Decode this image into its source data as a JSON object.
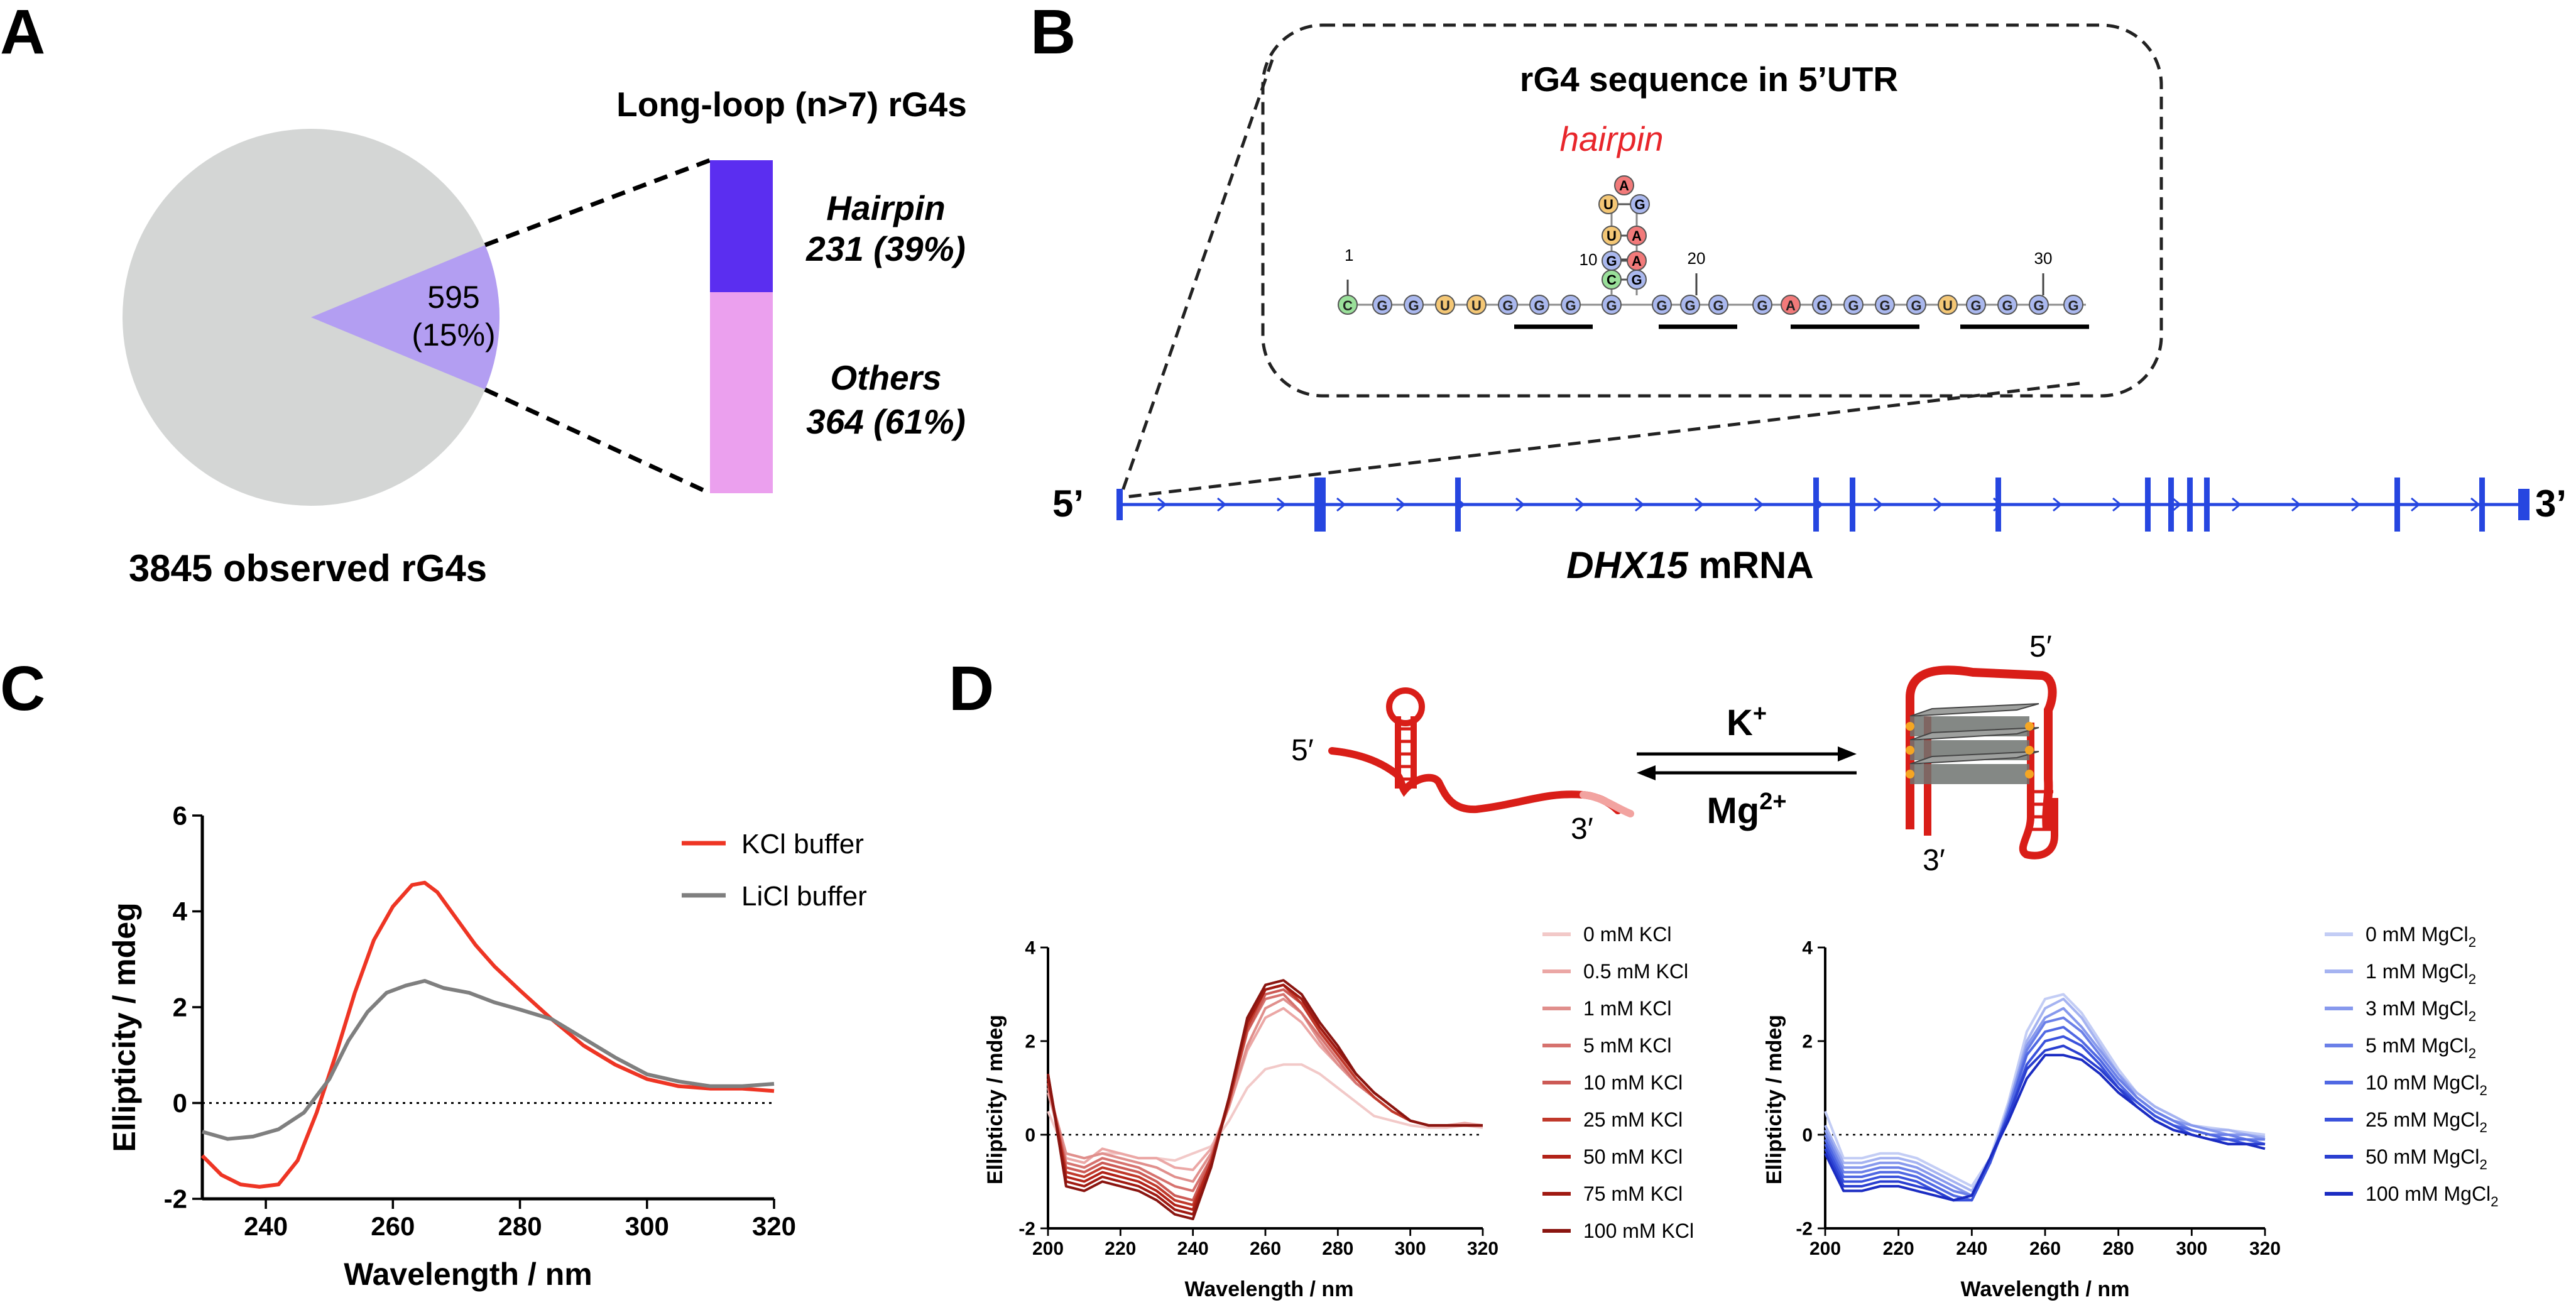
{
  "panel_labels": {
    "a": "A",
    "b": "B",
    "c": "C",
    "d": "D"
  },
  "panelA": {
    "title": "Long-loop (n>7) rG4s",
    "pie_label_count": "595",
    "pie_label_pct": "(15%)",
    "pie_caption": "3845 observed rG4s",
    "hairpin_name": "Hairpin",
    "hairpin_value": "231 (39%)",
    "others_name": "Others",
    "others_value": "364 (61%)",
    "colors": {
      "pie_rest": "#d4d6d5",
      "pie_slice": "#b39ef2",
      "hairpin": "#5b2ef0",
      "others": "#eba0ee"
    }
  },
  "panelB": {
    "inset_title": "rG4 sequence in 5’UTR",
    "hairpin_label": "hairpin",
    "five_prime": "5’",
    "three_prime": "3’",
    "gene": "DHX15",
    "mrna": " mRNA",
    "pos_1": "1",
    "pos_10": "10",
    "pos_20": "20",
    "pos_30": "30",
    "stem_left": [
      "U",
      "U",
      "G",
      "C"
    ],
    "stem_right": [
      "G",
      "A",
      "A",
      "G"
    ],
    "nuc_colors": {
      "G": "#aab8ee",
      "C": "#9ae09a",
      "U": "#f4c775",
      "A": "#f27a7a"
    },
    "line_color": "#2646e0"
  },
  "panelD": {
    "k_ion": "K",
    "k_sup": "+",
    "mg_ion": "Mg",
    "mg_sup": "2+",
    "left_5": "5′",
    "left_3": "3′",
    "right_5": "5′",
    "right_3": "3′"
  },
  "chart_data": [
    {
      "id": "C",
      "type": "line",
      "xlabel": "Wavelength / nm",
      "ylabel": "Ellipticity / mdeg",
      "xlim": [
        230,
        320
      ],
      "ylim": [
        -2,
        6
      ],
      "xticks": [
        240,
        260,
        280,
        300,
        320
      ],
      "yticks": [
        -2,
        0,
        2,
        4,
        6
      ],
      "zero_line": "dotted",
      "legend_position": "top-right",
      "series": [
        {
          "name": "KCl buffer",
          "color": "#ee3524",
          "x": [
            230,
            233,
            236,
            239,
            242,
            245,
            248,
            251,
            254,
            257,
            260,
            263,
            265,
            267,
            270,
            273,
            276,
            280,
            285,
            290,
            295,
            300,
            305,
            310,
            315,
            320
          ],
          "y": [
            -1.1,
            -1.5,
            -1.7,
            -1.75,
            -1.7,
            -1.2,
            -0.2,
            1.0,
            2.3,
            3.4,
            4.1,
            4.55,
            4.6,
            4.4,
            3.85,
            3.3,
            2.85,
            2.35,
            1.75,
            1.2,
            0.8,
            0.5,
            0.35,
            0.3,
            0.3,
            0.25
          ]
        },
        {
          "name": "LiCl buffer",
          "color": "#7f7f7f",
          "x": [
            230,
            234,
            238,
            242,
            246,
            250,
            253,
            256,
            259,
            262,
            265,
            268,
            272,
            276,
            280,
            285,
            290,
            295,
            300,
            305,
            310,
            315,
            320
          ],
          "y": [
            -0.6,
            -0.75,
            -0.7,
            -0.55,
            -0.2,
            0.5,
            1.3,
            1.9,
            2.3,
            2.45,
            2.55,
            2.4,
            2.3,
            2.1,
            1.95,
            1.75,
            1.35,
            0.95,
            0.6,
            0.45,
            0.35,
            0.35,
            0.4
          ]
        }
      ]
    },
    {
      "id": "D-KCl",
      "type": "line",
      "xlabel": "Wavelength / nm",
      "ylabel": "Ellipticity / mdeg",
      "xlim": [
        200,
        320
      ],
      "ylim": [
        -2,
        4
      ],
      "xticks": [
        200,
        220,
        240,
        260,
        280,
        300,
        320
      ],
      "yticks": [
        -2,
        0,
        2,
        4
      ],
      "zero_line": "dotted",
      "legend_position": "right",
      "x": [
        200,
        205,
        210,
        215,
        220,
        225,
        230,
        235,
        240,
        245,
        250,
        255,
        260,
        265,
        270,
        275,
        280,
        285,
        290,
        295,
        300,
        305,
        310,
        315,
        320
      ],
      "series": [
        {
          "name": "0 mM KCl",
          "color": "#f2c9c8",
          "y": [
            0.5,
            -0.4,
            -0.5,
            -0.4,
            -0.4,
            -0.5,
            -0.5,
            -0.55,
            -0.4,
            -0.25,
            0.3,
            1.0,
            1.4,
            1.5,
            1.5,
            1.3,
            1.0,
            0.7,
            0.4,
            0.3,
            0.2,
            0.15,
            0.15,
            0.2,
            0.15
          ]
        },
        {
          "name": "0.5 mM KCl",
          "color": "#eba7a5",
          "y": [
            0.9,
            -0.5,
            -0.6,
            -0.3,
            -0.4,
            -0.5,
            -0.5,
            -0.7,
            -0.75,
            -0.3,
            0.6,
            1.8,
            2.5,
            2.7,
            2.4,
            1.9,
            1.5,
            1.1,
            0.8,
            0.5,
            0.3,
            0.2,
            0.2,
            0.25,
            0.2
          ]
        },
        {
          "name": "1 mM KCl",
          "color": "#e08f8c",
          "y": [
            1.0,
            -0.4,
            -0.5,
            -0.4,
            -0.5,
            -0.6,
            -0.7,
            -0.9,
            -1.0,
            -0.4,
            0.6,
            1.9,
            2.7,
            2.9,
            2.6,
            2.0,
            1.5,
            1.1,
            0.8,
            0.5,
            0.3,
            0.2,
            0.2,
            0.2,
            0.2
          ]
        },
        {
          "name": "5 mM KCl",
          "color": "#d6726e",
          "y": [
            1.1,
            -0.6,
            -0.7,
            -0.5,
            -0.6,
            -0.7,
            -0.9,
            -1.1,
            -1.2,
            -0.5,
            0.7,
            2.2,
            2.9,
            3.0,
            2.6,
            2.1,
            1.6,
            1.1,
            0.8,
            0.5,
            0.3,
            0.2,
            0.2,
            0.2,
            0.2
          ]
        },
        {
          "name": "10 mM KCl",
          "color": "#cc5a55",
          "y": [
            1.1,
            -0.7,
            -0.8,
            -0.6,
            -0.7,
            -0.8,
            -1.0,
            -1.3,
            -1.4,
            -0.5,
            0.7,
            2.2,
            3.0,
            3.1,
            2.8,
            2.2,
            1.7,
            1.2,
            0.8,
            0.5,
            0.3,
            0.2,
            0.2,
            0.2,
            0.2
          ]
        },
        {
          "name": "25 mM KCl",
          "color": "#c0392b",
          "y": [
            1.2,
            -0.8,
            -0.9,
            -0.7,
            -0.8,
            -0.9,
            -1.1,
            -1.4,
            -1.5,
            -0.6,
            0.7,
            2.3,
            3.1,
            3.2,
            2.8,
            2.2,
            1.7,
            1.2,
            0.8,
            0.5,
            0.3,
            0.2,
            0.2,
            0.2,
            0.2
          ]
        },
        {
          "name": "50 mM KCl",
          "color": "#b22218",
          "y": [
            1.2,
            -0.9,
            -1.0,
            -0.8,
            -0.9,
            -1.0,
            -1.2,
            -1.5,
            -1.6,
            -0.6,
            0.8,
            2.4,
            3.1,
            3.2,
            2.9,
            2.3,
            1.8,
            1.3,
            0.9,
            0.6,
            0.3,
            0.2,
            0.2,
            0.2,
            0.2
          ]
        },
        {
          "name": "75 mM KCl",
          "color": "#a01a12",
          "y": [
            1.3,
            -1.0,
            -1.1,
            -0.9,
            -1.0,
            -1.1,
            -1.3,
            -1.6,
            -1.7,
            -0.7,
            0.8,
            2.4,
            3.1,
            3.2,
            2.9,
            2.3,
            1.8,
            1.3,
            0.9,
            0.6,
            0.3,
            0.2,
            0.2,
            0.2,
            0.2
          ]
        },
        {
          "name": "100 mM KCl",
          "color": "#8a1510",
          "y": [
            1.3,
            -1.1,
            -1.2,
            -1.0,
            -1.1,
            -1.2,
            -1.4,
            -1.7,
            -1.8,
            -0.7,
            0.8,
            2.5,
            3.2,
            3.3,
            3.0,
            2.4,
            1.9,
            1.3,
            0.9,
            0.6,
            0.3,
            0.2,
            0.2,
            0.2,
            0.2
          ]
        }
      ]
    },
    {
      "id": "D-MgCl2",
      "type": "line",
      "xlabel": "Wavelength / nm",
      "ylabel": "Ellipticity / mdeg",
      "xlim": [
        200,
        320
      ],
      "ylim": [
        -2,
        4
      ],
      "xticks": [
        200,
        220,
        240,
        260,
        280,
        300,
        320
      ],
      "yticks": [
        -2,
        0,
        2,
        4
      ],
      "zero_line": "dotted",
      "legend_position": "right",
      "x": [
        200,
        205,
        210,
        215,
        220,
        225,
        230,
        235,
        240,
        245,
        250,
        255,
        260,
        265,
        270,
        275,
        280,
        285,
        290,
        295,
        300,
        305,
        310,
        315,
        320
      ],
      "series": [
        {
          "name": "0 mM MgCl",
          "sub": "2",
          "color": "#c3cdf5",
          "y": [
            0.5,
            -0.5,
            -0.5,
            -0.4,
            -0.4,
            -0.5,
            -0.7,
            -0.9,
            -1.1,
            -0.5,
            0.7,
            2.2,
            2.9,
            3.0,
            2.6,
            2.0,
            1.4,
            0.9,
            0.6,
            0.4,
            0.2,
            0.15,
            0.1,
            0.05,
            0.0
          ]
        },
        {
          "name": "1 mM MgCl",
          "sub": "2",
          "color": "#a5b3f1",
          "y": [
            0.2,
            -0.6,
            -0.6,
            -0.5,
            -0.5,
            -0.6,
            -0.8,
            -1.0,
            -1.2,
            -0.6,
            0.6,
            2.0,
            2.7,
            2.9,
            2.5,
            1.9,
            1.3,
            0.9,
            0.6,
            0.4,
            0.2,
            0.1,
            0.1,
            0.0,
            -0.05
          ]
        },
        {
          "name": "3 mM MgCl",
          "sub": "2",
          "color": "#8799ed",
          "y": [
            0.1,
            -0.7,
            -0.7,
            -0.6,
            -0.6,
            -0.7,
            -0.9,
            -1.1,
            -1.3,
            -0.6,
            0.6,
            1.9,
            2.5,
            2.7,
            2.3,
            1.8,
            1.3,
            0.8,
            0.5,
            0.3,
            0.2,
            0.1,
            0.0,
            0.0,
            -0.1
          ]
        },
        {
          "name": "5 mM MgCl",
          "sub": "2",
          "color": "#6b80e8",
          "y": [
            0.0,
            -0.8,
            -0.8,
            -0.7,
            -0.7,
            -0.8,
            -1.0,
            -1.2,
            -1.3,
            -0.6,
            0.5,
            1.8,
            2.4,
            2.5,
            2.2,
            1.7,
            1.2,
            0.8,
            0.5,
            0.3,
            0.1,
            0.0,
            0.0,
            -0.1,
            -0.1
          ]
        },
        {
          "name": "10 mM MgCl",
          "sub": "2",
          "color": "#5068e3",
          "y": [
            -0.1,
            -0.9,
            -0.9,
            -0.8,
            -0.8,
            -0.9,
            -1.1,
            -1.3,
            -1.4,
            -0.6,
            0.5,
            1.7,
            2.2,
            2.3,
            2.0,
            1.6,
            1.1,
            0.7,
            0.4,
            0.2,
            0.1,
            0.0,
            -0.1,
            -0.1,
            -0.2
          ]
        },
        {
          "name": "25 mM MgCl",
          "sub": "2",
          "color": "#3a52dc",
          "y": [
            -0.2,
            -1.0,
            -1.0,
            -0.9,
            -0.9,
            -1.0,
            -1.2,
            -1.4,
            -1.4,
            -0.6,
            0.4,
            1.5,
            2.0,
            2.1,
            1.9,
            1.5,
            1.0,
            0.7,
            0.4,
            0.2,
            0.0,
            -0.1,
            -0.1,
            -0.2,
            -0.2
          ]
        },
        {
          "name": "50 mM MgCl",
          "sub": "2",
          "color": "#2a3fd0",
          "y": [
            -0.3,
            -1.1,
            -1.1,
            -1.0,
            -1.0,
            -1.1,
            -1.2,
            -1.4,
            -1.3,
            -0.5,
            0.4,
            1.4,
            1.8,
            1.9,
            1.7,
            1.4,
            1.0,
            0.6,
            0.3,
            0.1,
            0.0,
            -0.1,
            -0.2,
            -0.2,
            -0.2
          ]
        },
        {
          "name": "100 mM MgCl",
          "sub": "2",
          "color": "#1b2cc2",
          "y": [
            -0.4,
            -1.2,
            -1.2,
            -1.1,
            -1.1,
            -1.2,
            -1.3,
            -1.4,
            -1.3,
            -0.5,
            0.3,
            1.2,
            1.7,
            1.7,
            1.6,
            1.3,
            0.9,
            0.6,
            0.3,
            0.1,
            0.0,
            -0.1,
            -0.2,
            -0.2,
            -0.3
          ]
        }
      ]
    }
  ]
}
